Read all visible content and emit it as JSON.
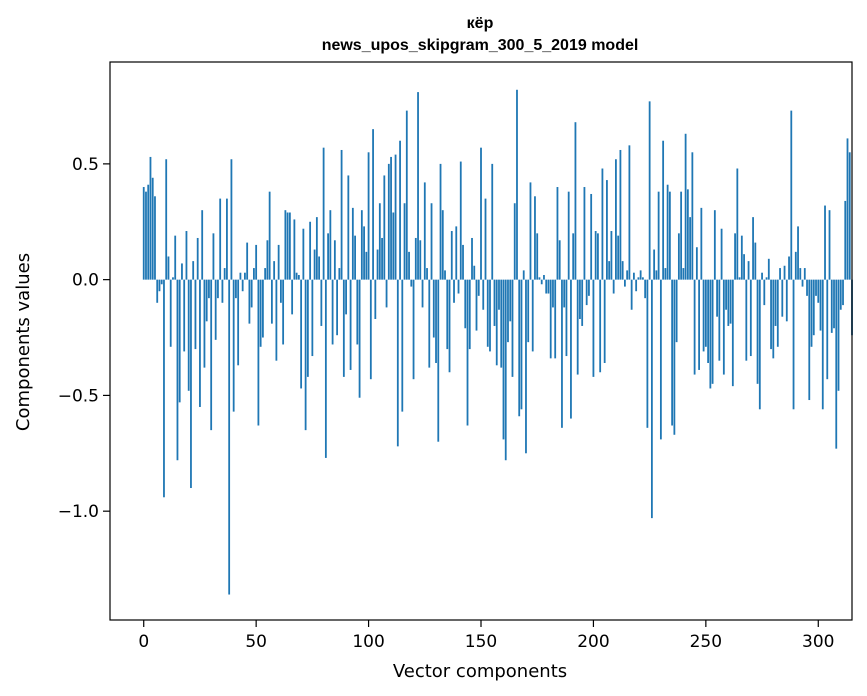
{
  "chart_data": {
    "type": "bar",
    "title": "кёр",
    "subtitle": "news_upos_skipgram_300_5_2019 model",
    "xlabel": "Vector components",
    "ylabel": "Components values",
    "xlim": [
      -15,
      315
    ],
    "ylim": [
      -1.47,
      0.94
    ],
    "xticks": [
      0,
      50,
      100,
      150,
      200,
      250,
      300
    ],
    "xtick_labels": [
      "0",
      "50",
      "100",
      "150",
      "200",
      "250",
      "300"
    ],
    "yticks": [
      -1.0,
      -0.5,
      0.0,
      0.5
    ],
    "ytick_labels": [
      "−1.0",
      "−0.5",
      "0.0",
      "0.5"
    ],
    "bar_color": "#1f77b4",
    "grid": false,
    "values": [
      0.4,
      0.38,
      0.41,
      0.53,
      0.44,
      0.36,
      -0.1,
      -0.05,
      -0.02,
      -0.94,
      0.52,
      0.1,
      -0.29,
      0.01,
      0.19,
      -0.78,
      -0.53,
      0.07,
      -0.31,
      0.21,
      -0.48,
      -0.9,
      0.08,
      -0.3,
      0.18,
      -0.55,
      0.3,
      -0.38,
      -0.18,
      -0.08,
      -0.65,
      0.2,
      -0.26,
      -0.08,
      0.35,
      -0.1,
      0.05,
      0.35,
      -1.36,
      0.52,
      -0.57,
      -0.08,
      -0.37,
      0.03,
      -0.05,
      0.03,
      0.16,
      -0.19,
      -0.12,
      0.05,
      0.15,
      -0.63,
      -0.29,
      -0.25,
      0.05,
      0.17,
      0.38,
      -0.19,
      0.08,
      -0.35,
      0.15,
      -0.1,
      -0.28,
      0.3,
      0.29,
      0.29,
      -0.15,
      0.26,
      0.03,
      0.02,
      -0.47,
      0.22,
      -0.65,
      -0.42,
      0.25,
      -0.33,
      0.13,
      0.27,
      0.1,
      -0.2,
      0.57,
      -0.77,
      0.2,
      0.3,
      -0.28,
      0.17,
      -0.24,
      0.05,
      0.56,
      -0.42,
      -0.15,
      0.45,
      -0.39,
      0.31,
      0.19,
      -0.28,
      -0.51,
      0.3,
      0.23,
      0.12,
      0.55,
      -0.43,
      0.65,
      -0.17,
      0.13,
      0.33,
      0.18,
      0.45,
      -0.12,
      0.5,
      0.53,
      0.29,
      0.54,
      -0.72,
      0.6,
      -0.57,
      0.33,
      0.73,
      0.12,
      -0.03,
      -0.43,
      0.18,
      0.81,
      0.17,
      -0.12,
      0.42,
      0.05,
      -0.38,
      0.33,
      -0.25,
      -0.36,
      -0.7,
      0.5,
      0.3,
      0.04,
      -0.3,
      -0.4,
      0.21,
      -0.1,
      0.23,
      -0.06,
      0.51,
      0.15,
      -0.21,
      -0.63,
      -0.3,
      0.18,
      0.06,
      -0.22,
      -0.07,
      0.57,
      -0.13,
      0.35,
      -0.29,
      -0.31,
      0.5,
      -0.2,
      -0.37,
      -0.13,
      -0.38,
      -0.69,
      -0.78,
      -0.27,
      -0.18,
      -0.42,
      0.33,
      0.82,
      -0.59,
      -0.56,
      0.04,
      -0.75,
      -0.27,
      0.42,
      -0.31,
      0.36,
      0.2,
      0.01,
      -0.02,
      0.02,
      -0.06,
      -0.06,
      -0.34,
      -0.12,
      -0.34,
      0.4,
      0.17,
      -0.64,
      -0.12,
      -0.33,
      0.38,
      -0.6,
      0.2,
      0.68,
      -0.41,
      -0.17,
      -0.2,
      0.4,
      -0.11,
      -0.07,
      0.37,
      -0.42,
      0.21,
      0.2,
      -0.4,
      0.48,
      -0.36,
      0.43,
      0.08,
      0.21,
      -0.06,
      0.52,
      0.19,
      0.56,
      0.08,
      -0.03,
      0.04,
      0.58,
      -0.13,
      0.03,
      -0.05,
      0.01,
      0.04,
      0.01,
      -0.08,
      -0.64,
      0.77,
      -1.03,
      0.13,
      0.04,
      0.38,
      -0.69,
      0.6,
      0.05,
      0.41,
      0.38,
      -0.63,
      -0.67,
      -0.27,
      0.2,
      0.38,
      0.05,
      0.63,
      0.39,
      0.27,
      0.55,
      -0.41,
      0.14,
      -0.39,
      0.31,
      -0.31,
      -0.29,
      -0.36,
      -0.47,
      -0.45,
      0.3,
      -0.16,
      -0.35,
      0.22,
      -0.41,
      -0.13,
      -0.2,
      -0.19,
      -0.46,
      0.2,
      0.48,
      0.01,
      0.19,
      0.11,
      -0.35,
      0.08,
      -0.33,
      0.27,
      0.16,
      -0.45,
      -0.56,
      0.03,
      -0.11,
      0.01,
      0.09,
      -0.3,
      -0.34,
      -0.2,
      -0.29,
      0.05,
      -0.16,
      0.06,
      -0.18,
      0.1,
      0.73,
      -0.56,
      0.12,
      0.23,
      0.05,
      -0.03,
      0.05,
      -0.07,
      -0.52,
      -0.29,
      -0.24,
      -0.07,
      -0.1,
      -0.22,
      -0.56,
      0.32,
      -0.43,
      0.3,
      -0.23,
      -0.21,
      -0.73,
      -0.48,
      -0.13,
      -0.11,
      0.34,
      0.61,
      0.55,
      -0.24
    ]
  }
}
